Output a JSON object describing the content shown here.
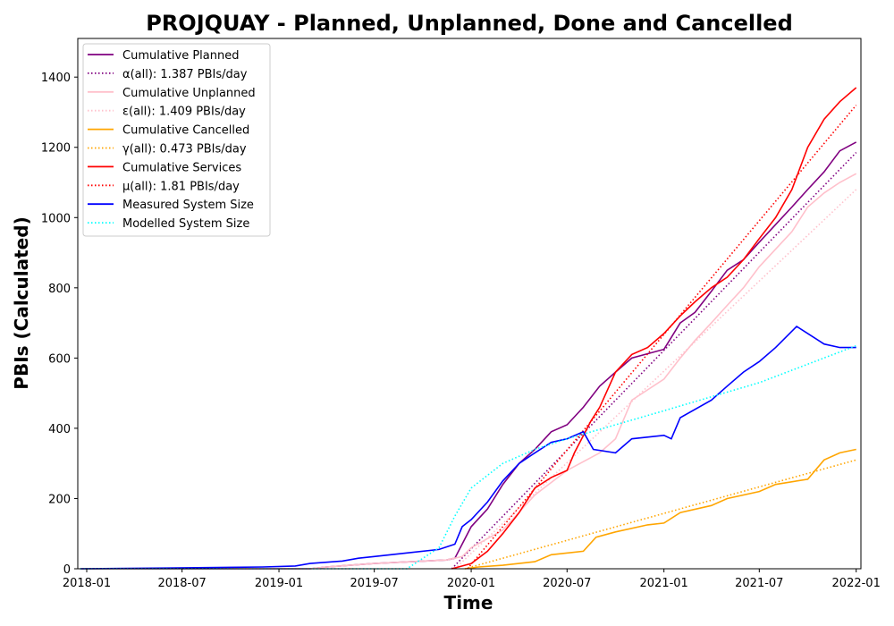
{
  "chart_data": {
    "type": "line",
    "title": "PROJQUAY - Planned, Unplanned, Done  and Cancelled",
    "xlabel": "Time",
    "ylabel": "PBIs (Calculated)",
    "xlim": [
      "2017-12-15",
      "2022-01-10"
    ],
    "ylim": [
      0,
      1510
    ],
    "x_ticks": [
      "2018-01",
      "2018-07",
      "2019-01",
      "2019-07",
      "2020-01",
      "2020-07",
      "2021-01",
      "2021-07",
      "2022-01"
    ],
    "y_ticks": [
      0,
      200,
      400,
      600,
      800,
      1000,
      1200,
      1400
    ],
    "grid": false,
    "legend_position": "top-left",
    "series": [
      {
        "name": "Cumulative Planned",
        "color": "#800080",
        "style": "solid",
        "points": [
          [
            "2017-12-20",
            0
          ],
          [
            "2019-03-01",
            0
          ],
          [
            "2019-04-01",
            5
          ],
          [
            "2019-07-01",
            15
          ],
          [
            "2019-11-15",
            25
          ],
          [
            "2019-12-01",
            30
          ],
          [
            "2020-01-01",
            120
          ],
          [
            "2020-02-01",
            170
          ],
          [
            "2020-03-01",
            240
          ],
          [
            "2020-04-01",
            300
          ],
          [
            "2020-05-01",
            340
          ],
          [
            "2020-06-01",
            390
          ],
          [
            "2020-07-01",
            410
          ],
          [
            "2020-08-01",
            460
          ],
          [
            "2020-09-01",
            520
          ],
          [
            "2020-10-01",
            560
          ],
          [
            "2020-11-01",
            600
          ],
          [
            "2021-01-01",
            625
          ],
          [
            "2021-02-01",
            700
          ],
          [
            "2021-03-01",
            730
          ],
          [
            "2021-04-01",
            790
          ],
          [
            "2021-05-01",
            850
          ],
          [
            "2021-06-01",
            880
          ],
          [
            "2021-07-01",
            930
          ],
          [
            "2021-08-01",
            980
          ],
          [
            "2021-09-01",
            1030
          ],
          [
            "2021-10-01",
            1080
          ],
          [
            "2021-11-01",
            1130
          ],
          [
            "2021-12-01",
            1190
          ],
          [
            "2022-01-01",
            1215
          ]
        ]
      },
      {
        "name": "α(all): 1.387 PBIs/day",
        "color": "#800080",
        "style": "dotted",
        "points": [
          [
            "2019-11-25",
            0
          ],
          [
            "2022-01-01",
            1185
          ]
        ]
      },
      {
        "name": "Cumulative Unplanned",
        "color": "#ffc0cb",
        "style": "solid",
        "points": [
          [
            "2017-12-20",
            0
          ],
          [
            "2019-03-01",
            0
          ],
          [
            "2019-04-01",
            5
          ],
          [
            "2019-07-01",
            15
          ],
          [
            "2019-11-15",
            25
          ],
          [
            "2019-12-15",
            35
          ],
          [
            "2020-01-01",
            60
          ],
          [
            "2020-03-01",
            110
          ],
          [
            "2020-05-01",
            210
          ],
          [
            "2020-07-01",
            280
          ],
          [
            "2020-09-01",
            330
          ],
          [
            "2020-10-01",
            370
          ],
          [
            "2020-11-01",
            480
          ],
          [
            "2021-01-01",
            540
          ],
          [
            "2021-02-01",
            600
          ],
          [
            "2021-03-01",
            650
          ],
          [
            "2021-04-01",
            700
          ],
          [
            "2021-05-01",
            750
          ],
          [
            "2021-06-01",
            800
          ],
          [
            "2021-07-01",
            860
          ],
          [
            "2021-08-01",
            910
          ],
          [
            "2021-09-01",
            960
          ],
          [
            "2021-10-01",
            1030
          ],
          [
            "2021-11-01",
            1070
          ],
          [
            "2021-12-01",
            1100
          ],
          [
            "2022-01-01",
            1125
          ]
        ]
      },
      {
        "name": "ε(all): 1.409 PBIs/day",
        "color": "#ffc0cb",
        "style": "dotted",
        "points": [
          [
            "2019-12-01",
            0
          ],
          [
            "2022-01-01",
            1080
          ]
        ]
      },
      {
        "name": "Cumulative Cancelled",
        "color": "#ffa500",
        "style": "solid",
        "points": [
          [
            "2019-12-20",
            0
          ],
          [
            "2020-01-15",
            5
          ],
          [
            "2020-03-01",
            10
          ],
          [
            "2020-05-01",
            20
          ],
          [
            "2020-06-01",
            40
          ],
          [
            "2020-08-01",
            50
          ],
          [
            "2020-08-25",
            90
          ],
          [
            "2020-10-01",
            105
          ],
          [
            "2020-12-01",
            125
          ],
          [
            "2021-01-01",
            130
          ],
          [
            "2021-02-01",
            160
          ],
          [
            "2021-04-01",
            180
          ],
          [
            "2021-05-01",
            200
          ],
          [
            "2021-07-01",
            220
          ],
          [
            "2021-08-01",
            240
          ],
          [
            "2021-10-01",
            255
          ],
          [
            "2021-11-01",
            310
          ],
          [
            "2021-12-01",
            330
          ],
          [
            "2022-01-01",
            340
          ]
        ]
      },
      {
        "name": "γ(all): 0.473 PBIs/day",
        "color": "#ffa500",
        "style": "dotted",
        "points": [
          [
            "2019-12-20",
            0
          ],
          [
            "2022-01-01",
            310
          ]
        ]
      },
      {
        "name": "Cumulative Services",
        "color": "#ff0000",
        "style": "solid",
        "points": [
          [
            "2019-11-25",
            0
          ],
          [
            "2020-01-01",
            15
          ],
          [
            "2020-02-01",
            50
          ],
          [
            "2020-03-01",
            100
          ],
          [
            "2020-04-01",
            160
          ],
          [
            "2020-05-01",
            230
          ],
          [
            "2020-06-01",
            260
          ],
          [
            "2020-07-01",
            280
          ],
          [
            "2020-07-15",
            330
          ],
          [
            "2020-08-15",
            420
          ],
          [
            "2020-09-01",
            460
          ],
          [
            "2020-10-01",
            560
          ],
          [
            "2020-11-01",
            610
          ],
          [
            "2020-12-01",
            630
          ],
          [
            "2021-01-01",
            670
          ],
          [
            "2021-02-01",
            720
          ],
          [
            "2021-03-01",
            760
          ],
          [
            "2021-04-01",
            800
          ],
          [
            "2021-05-01",
            830
          ],
          [
            "2021-06-01",
            880
          ],
          [
            "2021-07-01",
            940
          ],
          [
            "2021-08-01",
            1000
          ],
          [
            "2021-09-01",
            1080
          ],
          [
            "2021-10-01",
            1200
          ],
          [
            "2021-11-01",
            1280
          ],
          [
            "2021-12-01",
            1330
          ],
          [
            "2022-01-01",
            1370
          ]
        ]
      },
      {
        "name": "μ(all): 1.81 PBIs/day",
        "color": "#ff0000",
        "style": "dotted",
        "points": [
          [
            "2019-12-25",
            0
          ],
          [
            "2022-01-01",
            1320
          ]
        ]
      },
      {
        "name": "Measured System Size",
        "color": "#0000ff",
        "style": "solid",
        "points": [
          [
            "2017-12-20",
            0
          ],
          [
            "2018-06-01",
            2
          ],
          [
            "2018-12-01",
            5
          ],
          [
            "2019-02-01",
            8
          ],
          [
            "2019-03-01",
            15
          ],
          [
            "2019-05-01",
            22
          ],
          [
            "2019-06-01",
            30
          ],
          [
            "2019-07-01",
            35
          ],
          [
            "2019-09-01",
            45
          ],
          [
            "2019-11-01",
            55
          ],
          [
            "2019-12-01",
            70
          ],
          [
            "2019-12-15",
            120
          ],
          [
            "2020-01-01",
            140
          ],
          [
            "2020-02-01",
            190
          ],
          [
            "2020-03-01",
            250
          ],
          [
            "2020-04-01",
            300
          ],
          [
            "2020-05-01",
            330
          ],
          [
            "2020-06-01",
            360
          ],
          [
            "2020-07-01",
            370
          ],
          [
            "2020-08-01",
            390
          ],
          [
            "2020-08-20",
            340
          ],
          [
            "2020-10-01",
            330
          ],
          [
            "2020-11-01",
            370
          ],
          [
            "2021-01-01",
            380
          ],
          [
            "2021-01-15",
            370
          ],
          [
            "2021-02-01",
            430
          ],
          [
            "2021-04-01",
            480
          ],
          [
            "2021-05-01",
            520
          ],
          [
            "2021-06-01",
            560
          ],
          [
            "2021-07-01",
            590
          ],
          [
            "2021-08-01",
            630
          ],
          [
            "2021-09-10",
            690
          ],
          [
            "2021-10-01",
            670
          ],
          [
            "2021-11-01",
            640
          ],
          [
            "2021-12-01",
            630
          ],
          [
            "2022-01-01",
            630
          ]
        ]
      },
      {
        "name": "Modelled System Size",
        "color": "#00ffff",
        "style": "dotted",
        "points": [
          [
            "2017-12-20",
            0
          ],
          [
            "2019-09-01",
            0
          ],
          [
            "2019-11-01",
            60
          ],
          [
            "2019-12-01",
            150
          ],
          [
            "2020-01-01",
            230
          ],
          [
            "2020-03-01",
            300
          ],
          [
            "2020-05-01",
            340
          ],
          [
            "2020-07-01",
            370
          ],
          [
            "2021-01-01",
            450
          ],
          [
            "2021-07-01",
            530
          ],
          [
            "2022-01-01",
            635
          ]
        ]
      }
    ]
  }
}
